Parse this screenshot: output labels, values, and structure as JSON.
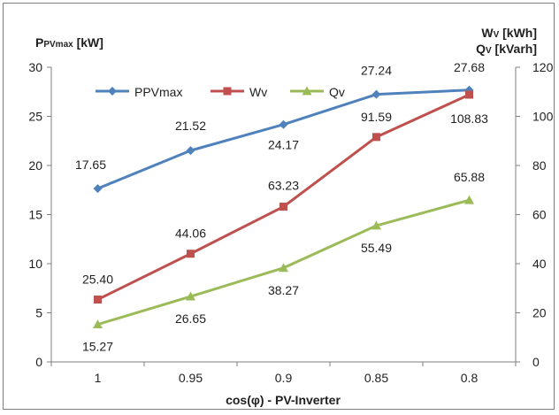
{
  "chart_data": {
    "type": "line",
    "categories": [
      "1",
      "0.95",
      "0.9",
      "0.85",
      "0.8"
    ],
    "xlabel": "cos(φ) - PV-Inverter",
    "y_left": {
      "label": "PPVmax [kW]",
      "label_main": "P",
      "label_sub": "PVmax",
      "label_unit": " [kW]",
      "range": [
        0,
        30
      ],
      "ticks": [
        "0",
        "5",
        "10",
        "15",
        "20",
        "25",
        "30"
      ]
    },
    "y_right": {
      "label_line1": "WV [kWh]",
      "label_line1_main": "W",
      "label_line1_sub": "V",
      "label_line1_unit": " [kWh]",
      "label_line2": "QV [kVarh]",
      "label_line2_main": "Q",
      "label_line2_sub": "V",
      "label_line2_unit": " [kVarh]",
      "range": [
        0,
        120
      ],
      "ticks": [
        "0",
        "20",
        "40",
        "60",
        "80",
        "100",
        "120"
      ]
    },
    "grid": false,
    "legend_position": "top-left",
    "series": [
      {
        "name": "PPVmax",
        "axis": "left",
        "color": "#4f81bd",
        "marker": "diamond",
        "values": [
          17.65,
          21.52,
          24.17,
          27.24,
          27.68
        ],
        "labels": [
          "17.65",
          "21.52",
          "24.17",
          "27.24",
          "27.68"
        ]
      },
      {
        "name": "Wv",
        "axis": "right",
        "color": "#c0504d",
        "marker": "square",
        "values": [
          25.4,
          44.06,
          63.23,
          91.59,
          108.83
        ],
        "labels": [
          "25.40",
          "44.06",
          "63.23",
          "91.59",
          "108.83"
        ]
      },
      {
        "name": "Qv",
        "axis": "right",
        "color": "#9bbb59",
        "marker": "triangle",
        "values": [
          15.27,
          26.65,
          38.27,
          55.49,
          65.88
        ],
        "labels": [
          "15.27",
          "26.65",
          "38.27",
          "55.49",
          "65.88"
        ]
      }
    ]
  }
}
